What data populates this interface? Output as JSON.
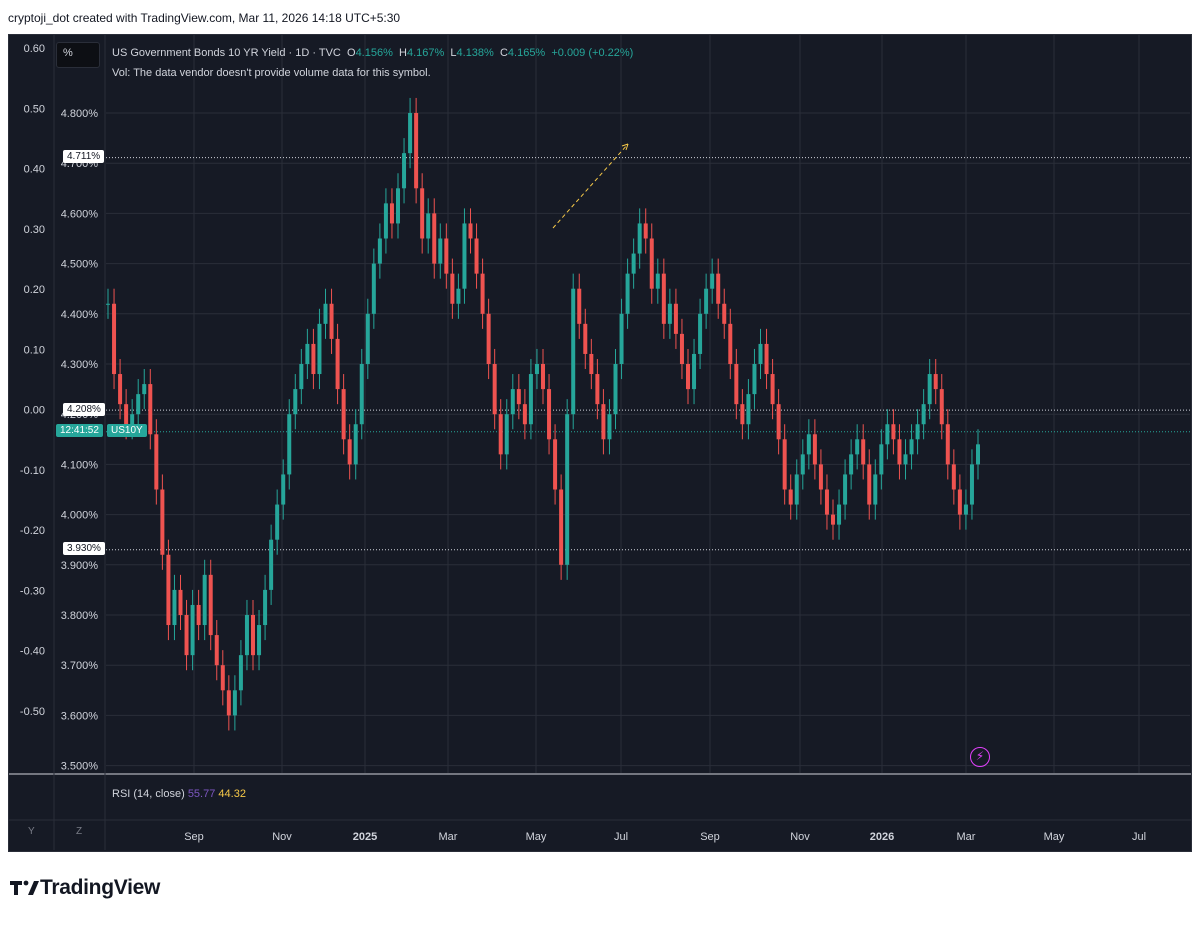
{
  "header": {
    "text": "cryptoji_dot created with TradingView.com, Mar 11, 2026 14:18 UTC+5:30"
  },
  "toolbar": {
    "percent_label": "%"
  },
  "legend": {
    "symbol": "US Government Bonds 10 YR Yield · 1D · TVC",
    "o_label": "O",
    "o": "4.156%",
    "h_label": "H",
    "h": "4.167%",
    "l_label": "L",
    "l": "4.138%",
    "c_label": "C",
    "c": "4.165%",
    "change": "+0.009 (+0.22%)",
    "vol_note": "Vol: The data vendor doesn't provide volume data for this symbol."
  },
  "price_tags": {
    "high_line": "4.711%",
    "current": "4.208%",
    "low_line": "3.930%",
    "countdown": "12:41:52",
    "ticker": "US10Y"
  },
  "rsi": {
    "label": "RSI (14, close)",
    "v1": "55.77",
    "v2": "44.32"
  },
  "axis_buttons": {
    "y": "Y",
    "z": "Z"
  },
  "footer": {
    "brand": "TradingView"
  },
  "colors": {
    "background": "#161a25",
    "up": "#26a69a",
    "down": "#ef5350",
    "grid": "#2a2e39",
    "accent": "#e040fb",
    "trend": "#f7c948"
  },
  "icons": [
    "percent-icon",
    "alert-bolt-icon",
    "tradingview-logo-icon"
  ],
  "chart_data": {
    "type": "line",
    "title": "US Government Bonds 10 YR Yield · 1D · TVC",
    "y_right_ticks": [
      "4.800%",
      "4.700%",
      "4.600%",
      "4.500%",
      "4.400%",
      "4.300%",
      "4.200%",
      "4.100%",
      "4.000%",
      "3.900%",
      "3.800%",
      "3.700%",
      "3.600%",
      "3.500%"
    ],
    "y_left_ticks": [
      "0.60",
      "0.50",
      "0.40",
      "0.30",
      "0.20",
      "0.10",
      "0.00",
      "-0.10",
      "-0.20",
      "-0.30",
      "-0.40",
      "-0.50"
    ],
    "x_ticks": [
      {
        "label": "Sep",
        "bold": false
      },
      {
        "label": "Nov",
        "bold": false
      },
      {
        "label": "2025",
        "bold": true
      },
      {
        "label": "Mar",
        "bold": false
      },
      {
        "label": "May",
        "bold": false
      },
      {
        "label": "Jul",
        "bold": false
      },
      {
        "label": "Sep",
        "bold": false
      },
      {
        "label": "Nov",
        "bold": false
      },
      {
        "label": "2026",
        "bold": true
      },
      {
        "label": "Mar",
        "bold": false
      },
      {
        "label": "May",
        "bold": false
      },
      {
        "label": "Jul",
        "bold": false
      }
    ],
    "ylim": [
      3.5,
      4.85
    ],
    "series": [
      {
        "values": [
          4.42,
          4.28,
          4.22,
          4.18,
          4.2,
          4.24,
          4.26,
          4.16,
          4.05,
          3.92,
          3.78,
          3.85,
          3.8,
          3.72,
          3.82,
          3.78,
          3.88,
          3.76,
          3.7,
          3.65,
          3.6,
          3.65,
          3.72,
          3.8,
          3.72,
          3.78,
          3.85,
          3.95,
          4.02,
          4.08,
          4.2,
          4.25,
          4.3,
          4.34,
          4.28,
          4.38,
          4.42,
          4.35,
          4.25,
          4.15,
          4.1,
          4.18,
          4.3,
          4.4,
          4.5,
          4.55,
          4.62,
          4.58,
          4.65,
          4.72,
          4.8,
          4.65,
          4.55,
          4.6,
          4.5,
          4.55,
          4.48,
          4.42,
          4.45,
          4.58,
          4.55,
          4.48,
          4.4,
          4.3,
          4.2,
          4.12,
          4.2,
          4.25,
          4.22,
          4.18,
          4.28,
          4.3,
          4.25,
          4.15,
          4.05,
          3.9,
          4.2,
          4.45,
          4.38,
          4.32,
          4.28,
          4.22,
          4.15,
          4.2,
          4.3,
          4.4,
          4.48,
          4.52,
          4.58,
          4.55,
          4.45,
          4.48,
          4.38,
          4.42,
          4.36,
          4.3,
          4.25,
          4.32,
          4.4,
          4.45,
          4.48,
          4.42,
          4.38,
          4.3,
          4.22,
          4.18,
          4.24,
          4.3,
          4.34,
          4.28,
          4.22,
          4.15,
          4.05,
          4.02,
          4.08,
          4.12,
          4.16,
          4.1,
          4.05,
          4.0,
          3.98,
          4.02,
          4.08,
          4.12,
          4.15,
          4.1,
          4.02,
          4.08,
          4.14,
          4.18,
          4.15,
          4.1,
          4.12,
          4.15,
          4.18,
          4.22,
          4.28,
          4.25,
          4.18,
          4.1,
          4.05,
          4.0,
          4.02,
          4.1,
          4.14
        ]
      }
    ]
  }
}
